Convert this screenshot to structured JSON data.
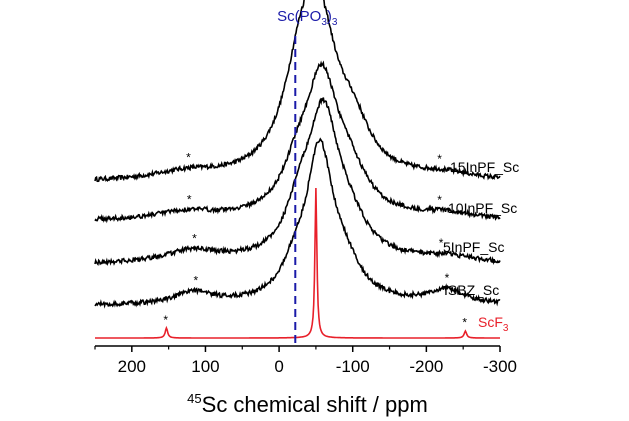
{
  "chart_data": {
    "type": "line",
    "x_axis": {
      "label_sup": "45",
      "label_text": "Sc chemical shift / ppm",
      "range": [
        250,
        -300
      ],
      "ticks": [
        200,
        100,
        0,
        -100,
        -200,
        -300
      ],
      "tick_labels": [
        "200",
        "100",
        "0",
        "-100",
        "-200",
        "-300"
      ],
      "reversed": true
    },
    "reference_line": {
      "x": -22,
      "label_main": "Sc(PO",
      "label_sub1": "3",
      "label_close": ")",
      "label_sub2": "3",
      "color": "#1a1aa8"
    },
    "series": [
      {
        "name": "15InPF_Sc",
        "color": "#000000",
        "peaks": [
          [
            125,
            8,
            55
          ],
          [
            -32,
            108,
            30
          ],
          [
            -57,
            112,
            28
          ],
          [
            -100,
            40,
            28
          ],
          [
            -225,
            6,
            50
          ]
        ],
        "star_x": [
          123,
          -218
        ]
      },
      {
        "name": "10InPF_Sc",
        "color": "#000000",
        "peaks": [
          [
            125,
            8,
            55
          ],
          [
            -25,
            35,
            25
          ],
          [
            -58,
            130,
            27
          ],
          [
            -95,
            35,
            30
          ],
          [
            -225,
            6,
            50
          ]
        ],
        "star_x": [
          122,
          -218
        ]
      },
      {
        "name": "5InPF_Sc",
        "color": "#000000",
        "peaks": [
          [
            118,
            12,
            45
          ],
          [
            -28,
            38,
            22
          ],
          [
            -60,
            140,
            26
          ],
          [
            -95,
            28,
            30
          ],
          [
            -225,
            6,
            50
          ]
        ],
        "star_x": [
          115,
          -220
        ]
      },
      {
        "name": "ISBZ_Sc",
        "color": "#000000",
        "peaks": [
          [
            115,
            12,
            30
          ],
          [
            -22,
            25,
            22
          ],
          [
            -55,
            145,
            22
          ],
          [
            -88,
            30,
            28
          ],
          [
            -228,
            14,
            30
          ]
        ],
        "star_x": [
          113,
          -228
        ]
      },
      {
        "name": "ScF",
        "name_sub": "3",
        "color": "#e8202a",
        "peaks": [
          [
            -50,
            150,
            1.6
          ],
          [
            153,
            10,
            2.0
          ],
          [
            -253,
            7,
            2.0
          ]
        ],
        "star_x": [
          154,
          -252
        ]
      }
    ]
  }
}
